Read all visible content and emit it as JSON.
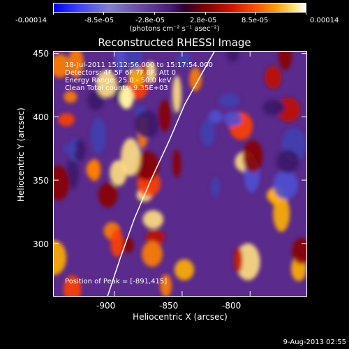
{
  "colorbar": {
    "ticks": [
      "-0.00014",
      "-8.5e-05",
      "-2.8e-05",
      "2.8e-05",
      "8.5e-05",
      "0.00014"
    ],
    "unit": "(photons cm⁻² s⁻¹ asec⁻²)"
  },
  "chart_data": {
    "type": "heatmap",
    "title": "Reconstructed RHESSI Image",
    "xlabel": "Heliocentric X (arcsec)",
    "ylabel": "Heliocentric Y (arcsec)",
    "xlim": [
      -945,
      -758
    ],
    "ylim": [
      258,
      452
    ],
    "xticks": [
      -900,
      -850,
      -800
    ],
    "yticks": [
      300,
      350,
      400,
      450
    ],
    "clim": [
      -0.00014,
      0.00014
    ],
    "annotations": [
      "18-Jul-2011 15:12:56.000 to 15:17:54.000",
      "Detectors: 4F 5F 6F 7F 8F, Att 0",
      "Energy Range: 25.0 - 50.0 keV",
      "Clean     Total counts: 9.35E+03"
    ],
    "peak_label": "Position of Peak = [-891,415]",
    "peak": [
      -891,
      415
    ],
    "limb_curve": [
      [
        -905,
        258
      ],
      [
        -895,
        290
      ],
      [
        -885,
        320
      ],
      [
        -873,
        350
      ],
      [
        -860,
        380
      ],
      [
        -848,
        410
      ],
      [
        -835,
        435
      ],
      [
        -826,
        452
      ]
    ]
  },
  "timestamp": "9-Aug-2013 02:55"
}
